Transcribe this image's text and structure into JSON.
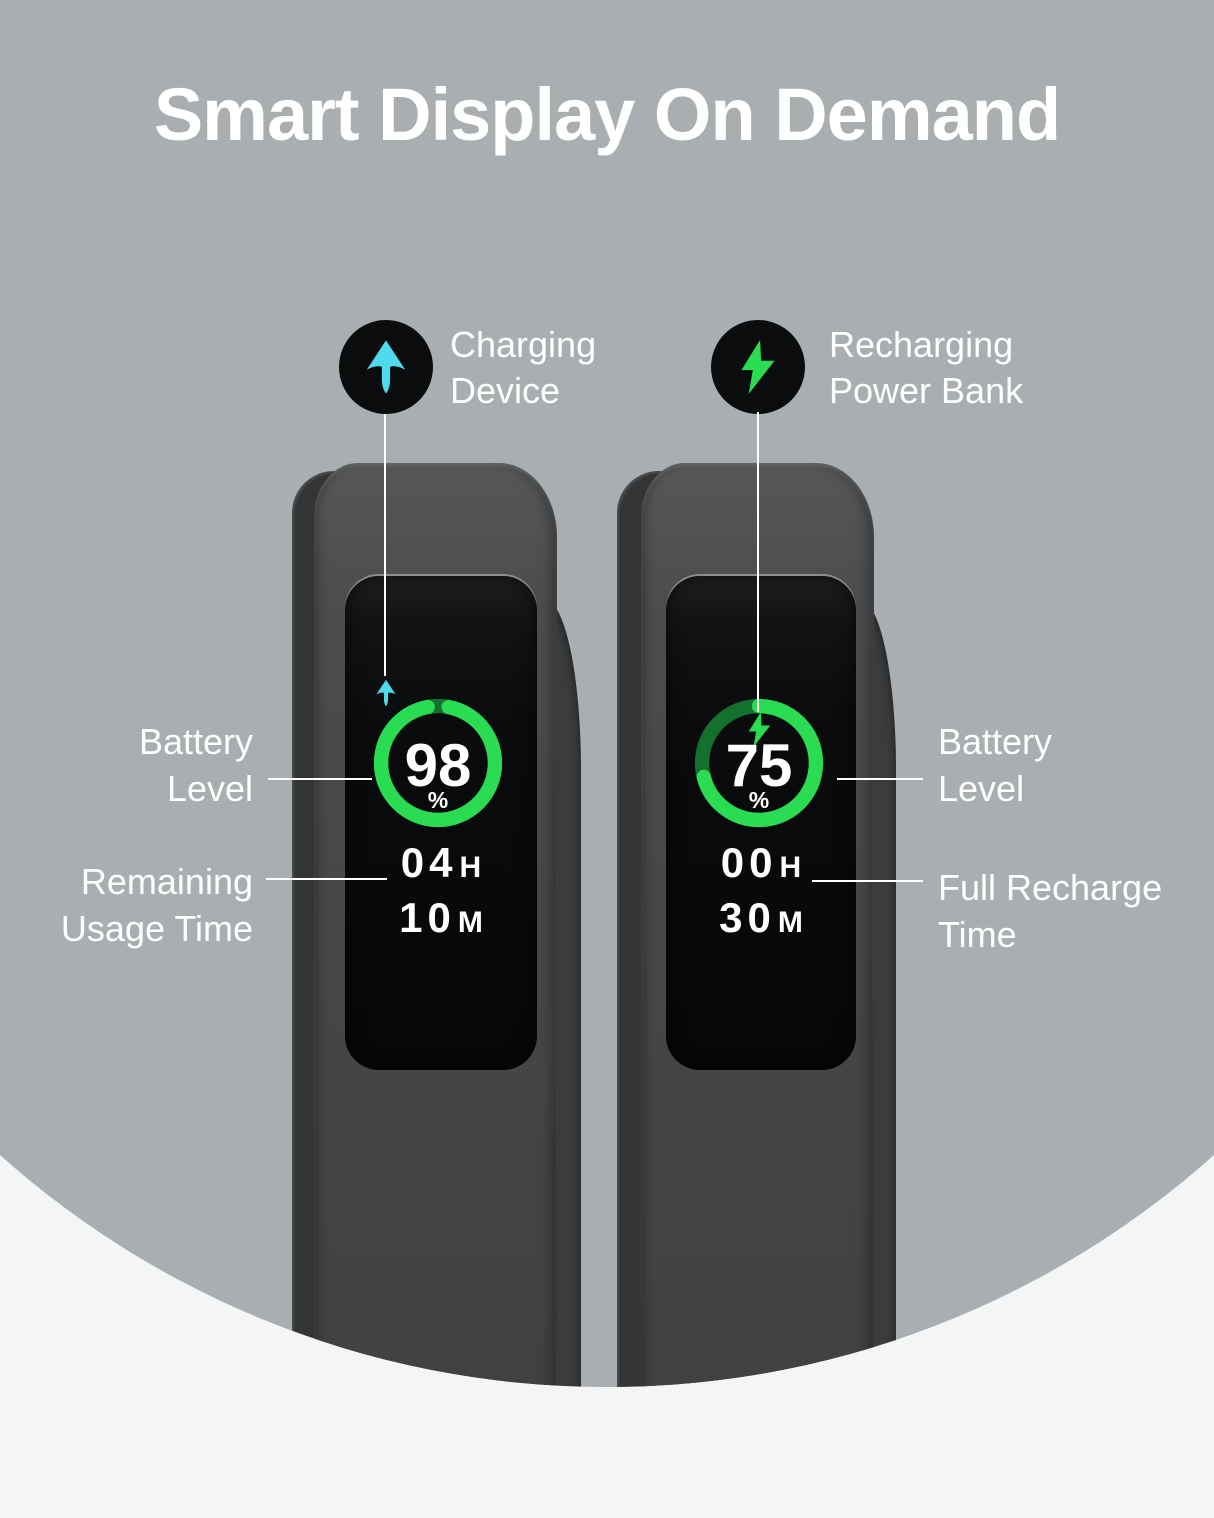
{
  "title": "Smart Display On Demand",
  "colors": {
    "page_bg": "#f4f5f7",
    "circle_bg": "#a9aeb1",
    "badge_bg": "#0b0c0e",
    "accent_cyan": "#4fdbee",
    "accent_green": "#29dc51",
    "ring_track_green": "#14702d",
    "text_white": "#ffffff"
  },
  "legend": {
    "charging_device": {
      "label": "Charging Device",
      "icon": "arrow-up-icon"
    },
    "recharging_power_bank": {
      "label": "Recharging Power Bank",
      "icon": "lightning-bolt-icon"
    }
  },
  "left_device": {
    "ring_percent": 98,
    "battery_percent": "98",
    "percent_sign": "%",
    "time": {
      "hours": "04",
      "hours_unit": "H",
      "minutes": "10",
      "minutes_unit": "M"
    },
    "battery_label": "Battery Level",
    "time_label": "Remaining Usage Time",
    "status_icon": "arrow-up-icon"
  },
  "right_device": {
    "ring_percent": 75,
    "battery_percent": "75",
    "percent_sign": "%",
    "time": {
      "hours": "00",
      "hours_unit": "H",
      "minutes": "30",
      "minutes_unit": "M"
    },
    "battery_label": "Battery Level",
    "time_label": "Full Recharge Time",
    "status_icon": "lightning-bolt-icon"
  }
}
